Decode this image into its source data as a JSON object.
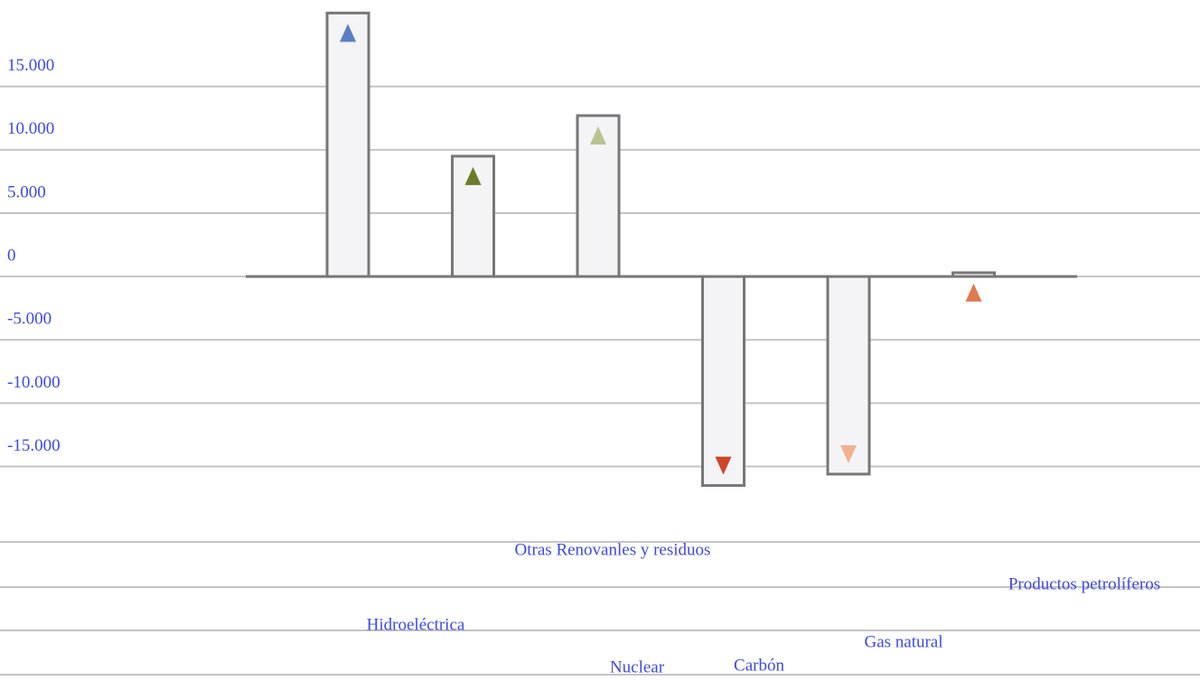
{
  "chart_data": {
    "type": "bar",
    "categories": [
      "Hidroeléctrica",
      "Nuclear",
      "Otras Renovanles y residuos",
      "Carbón",
      "Gas natural",
      "Productos petrolíferos"
    ],
    "values": [
      20800,
      9500,
      12700,
      -16500,
      -15600,
      300
    ],
    "colors": [
      "#5b7fc4",
      "#6b7d2a",
      "#b8c48e",
      "#d0442a",
      "#f2b08f",
      "#e07a50"
    ],
    "ylim": [
      -17600,
      20900
    ],
    "yticks": [
      {
        "value": -15000,
        "label": "-15.000"
      },
      {
        "value": -10000,
        "label": "-10.000"
      },
      {
        "value": -5000,
        "label": "-5.000"
      },
      0,
      {
        "value": 5000,
        "label": "5.000"
      },
      {
        "value": 10000,
        "label": "10.000"
      },
      {
        "value": 15000,
        "label": "15.000"
      }
    ],
    "grid": true
  }
}
